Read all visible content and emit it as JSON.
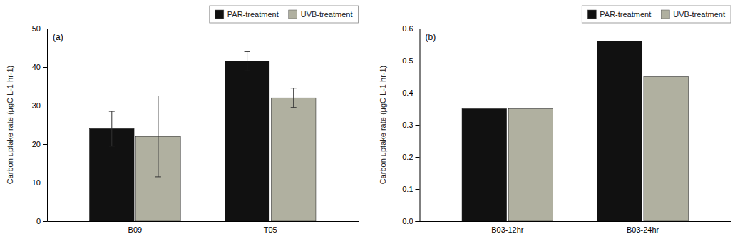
{
  "chart_data": [
    {
      "type": "bar",
      "categories": [
        "B09",
        "T05"
      ],
      "series": [
        {
          "name": "PAR-treatment",
          "color": "#111111",
          "values": [
            24.0,
            41.5
          ],
          "errors": [
            4.5,
            2.5
          ]
        },
        {
          "name": "UVB-treatment",
          "color": "#b0b0a0",
          "values": [
            22.0,
            32.0
          ],
          "errors": [
            10.5,
            2.5
          ]
        }
      ],
      "ylim": [
        0,
        50
      ],
      "yticks": [
        0,
        10,
        20,
        30,
        40,
        50
      ],
      "ylabel": "Carbon uptake rate (μgC L-1 hr-1)",
      "annotations": [
        "(a)"
      ],
      "legend": "upper right"
    },
    {
      "type": "bar",
      "categories": [
        "B03-12hr",
        "B03-24hr"
      ],
      "series": [
        {
          "name": "PAR-treatment",
          "color": "#111111",
          "values": [
            0.35,
            0.56
          ]
        },
        {
          "name": "UVB-treatment",
          "color": "#b0b0a0",
          "values": [
            0.35,
            0.45
          ]
        }
      ],
      "ylim": [
        0,
        0.6
      ],
      "yticks": [
        {
          "value": 0,
          "label": "0.0"
        },
        0.1,
        0.2,
        0.3,
        0.4,
        0.5,
        0.6
      ],
      "ylabel": "Carbon uptake rate (μgC L-1 hr-1)",
      "annotations": [
        "(b)"
      ],
      "legend": "upper right"
    }
  ]
}
